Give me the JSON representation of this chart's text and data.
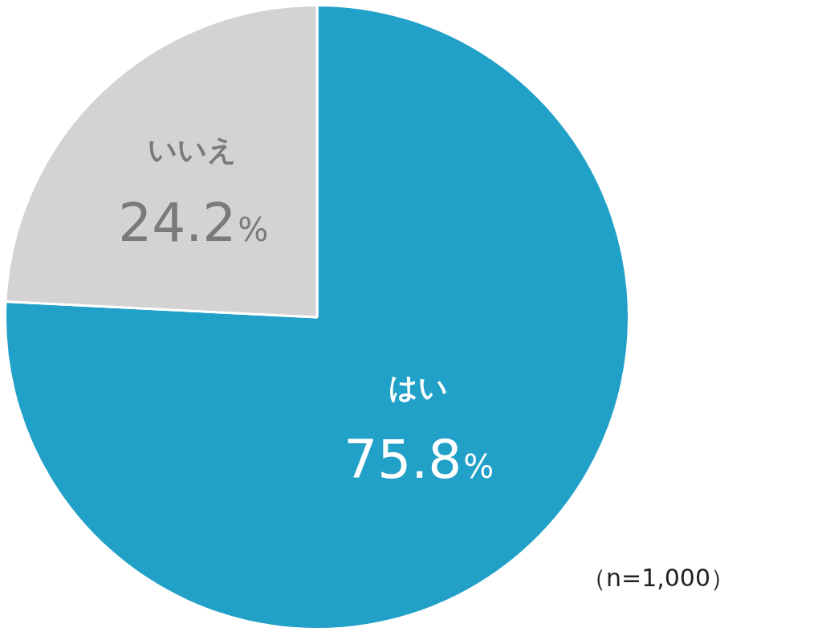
{
  "chart_data": {
    "type": "pie",
    "categories": [
      "はい",
      "いいえ"
    ],
    "values": [
      75.8,
      24.2
    ],
    "colors": [
      "#21a0c8",
      "#d4d2d3"
    ],
    "value_labels": [
      "75.8%",
      "24.2%"
    ],
    "annotations": [
      "（n=1,000）"
    ]
  }
}
